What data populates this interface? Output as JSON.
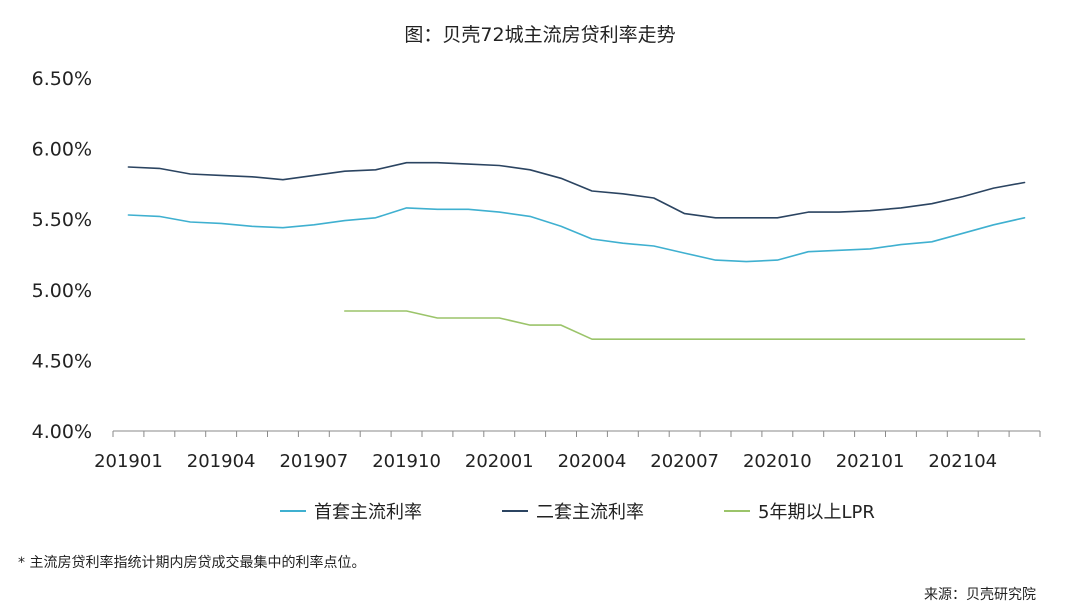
{
  "chart_data": {
    "type": "line",
    "title": "图：贝壳72城主流房贷利率走势",
    "categories": [
      "201901",
      "201902",
      "201903",
      "201904",
      "201905",
      "201906",
      "201907",
      "201908",
      "201909",
      "201910",
      "201911",
      "201912",
      "202001",
      "202002",
      "202003",
      "202004",
      "202005",
      "202006",
      "202007",
      "202008",
      "202009",
      "202010",
      "202011",
      "202012",
      "202101",
      "202102",
      "202103",
      "202104",
      "202105",
      "202106"
    ],
    "tick_labels": [
      "201901",
      "201904",
      "201907",
      "201910",
      "202001",
      "202004",
      "202007",
      "202010",
      "202101",
      "202104"
    ],
    "y_tick_labels": [
      "6.50%",
      "6.00%",
      "5.50%",
      "5.00%",
      "4.50%",
      "4.00%"
    ],
    "ylim": [
      4.0,
      6.5
    ],
    "y_step": 0.5,
    "series": [
      {
        "name": "首套主流利率",
        "color": "#3fb0d0",
        "values": [
          5.53,
          5.52,
          5.48,
          5.47,
          5.45,
          5.44,
          5.46,
          5.49,
          5.51,
          5.58,
          5.57,
          5.57,
          5.55,
          5.52,
          5.45,
          5.36,
          5.33,
          5.31,
          5.26,
          5.21,
          5.2,
          5.21,
          5.27,
          5.28,
          5.29,
          5.32,
          5.34,
          5.4,
          5.46,
          5.51
        ]
      },
      {
        "name": "二套主流利率",
        "color": "#2b4461",
        "values": [
          5.87,
          5.86,
          5.82,
          5.81,
          5.8,
          5.78,
          5.81,
          5.84,
          5.85,
          5.9,
          5.9,
          5.89,
          5.88,
          5.85,
          5.79,
          5.7,
          5.68,
          5.65,
          5.54,
          5.51,
          5.51,
          5.51,
          5.55,
          5.55,
          5.56,
          5.58,
          5.61,
          5.66,
          5.72,
          5.76
        ]
      },
      {
        "name": "5年期以上LPR",
        "color": "#9bc46a",
        "values": [
          null,
          null,
          null,
          null,
          null,
          null,
          null,
          4.85,
          4.85,
          4.85,
          4.8,
          4.8,
          4.8,
          4.75,
          4.75,
          4.65,
          4.65,
          4.65,
          4.65,
          4.65,
          4.65,
          4.65,
          4.65,
          4.65,
          4.65,
          4.65,
          4.65,
          4.65,
          4.65,
          4.65
        ]
      }
    ],
    "legend_position": "bottom",
    "grid": false
  },
  "footnote": "* 主流房贷利率指统计期内房贷成交最集中的利率点位。",
  "source": "来源：贝壳研究院"
}
